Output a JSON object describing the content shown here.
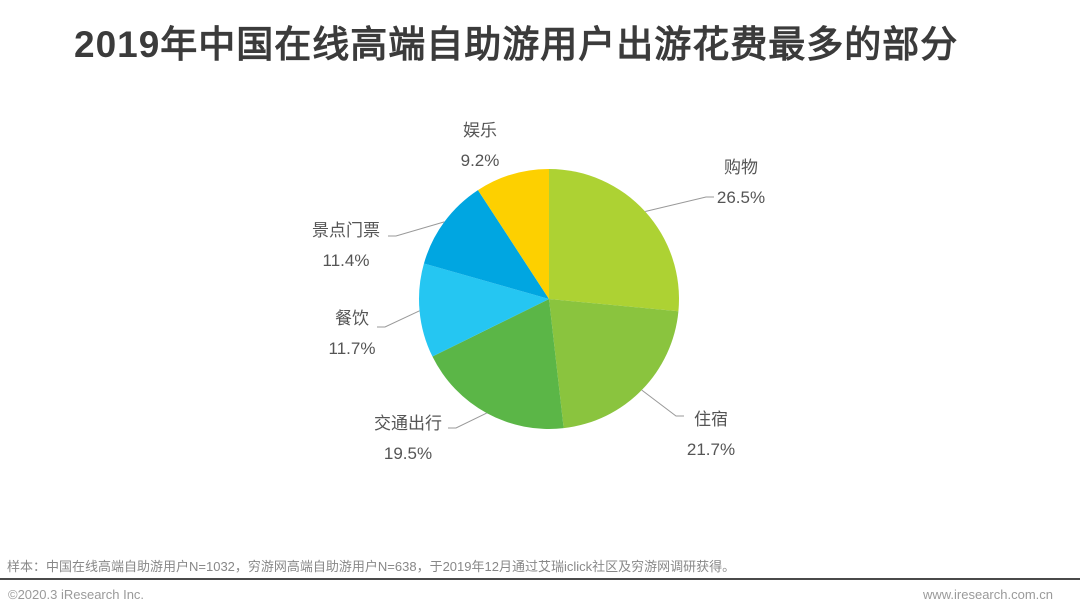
{
  "title": "2019年中国在线高端自助游用户出游花费最多的部分",
  "chart_data": {
    "type": "pie",
    "title": "2019年中国在线高端自助游用户出游花费最多的部分",
    "unit": "%",
    "direction": "clockwise",
    "start_angle_deg": 0,
    "legend": "none",
    "slices": [
      {
        "label": "购物",
        "value": 26.5,
        "display": "26.5%",
        "color": "#add233"
      },
      {
        "label": "住宿",
        "value": 21.7,
        "display": "21.7%",
        "color": "#8ac43e"
      },
      {
        "label": "交通出行",
        "value": 19.5,
        "display": "19.5%",
        "color": "#5bb647"
      },
      {
        "label": "餐饮",
        "value": 11.7,
        "display": "11.7%",
        "color": "#25c6f2"
      },
      {
        "label": "景点门票",
        "value": 11.4,
        "display": "11.4%",
        "color": "#00a6e1"
      },
      {
        "label": "娱乐",
        "value": 9.2,
        "display": "9.2%",
        "color": "#fdd000"
      }
    ]
  },
  "footer": {
    "note": "样本：中国在线高端自助游用户N=1032，穷游网高端自助游用户N=638，于2019年12月通过艾瑞iclick社区及穷游网调研获得。",
    "copyright": "©2020.3 iResearch Inc.",
    "website": "www.iresearch.com.cn"
  }
}
